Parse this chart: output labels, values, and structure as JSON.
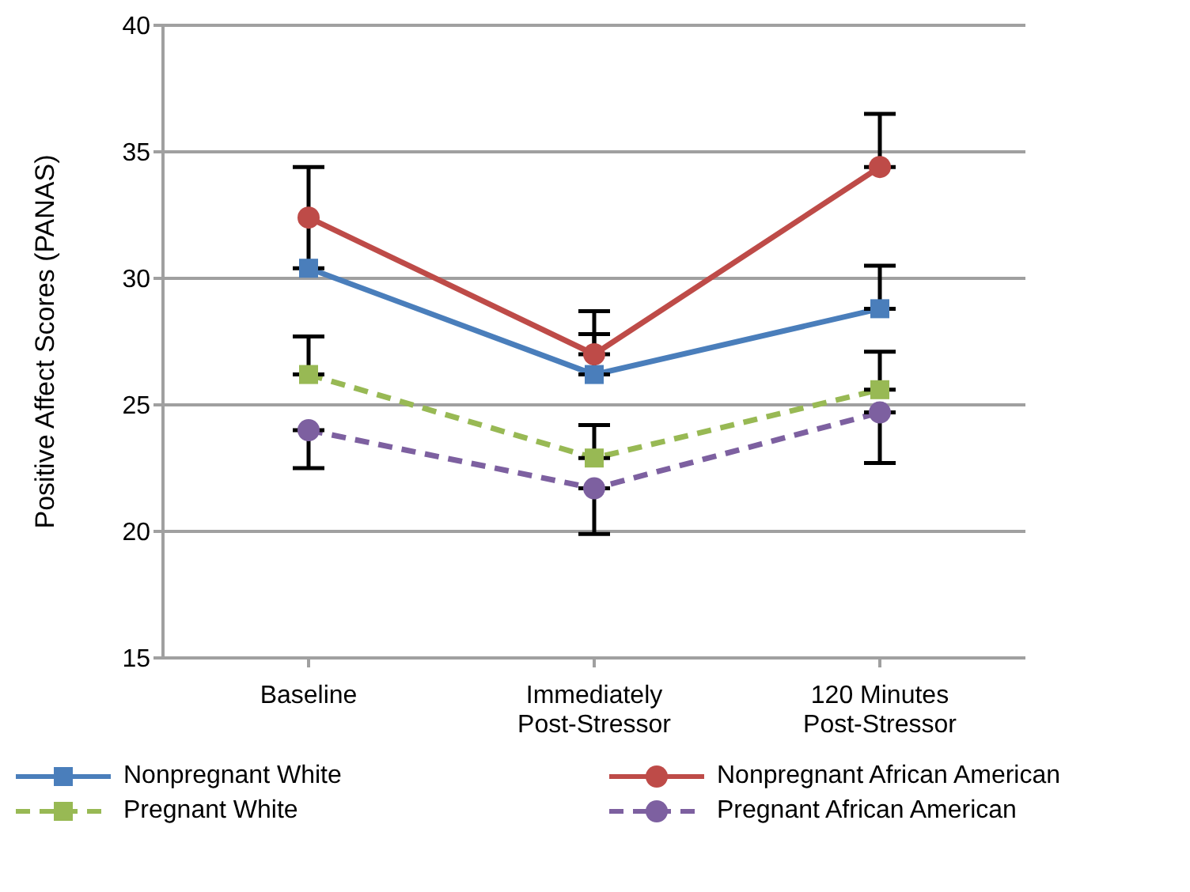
{
  "chart_data": {
    "type": "line",
    "ylabel": "Positive Affect Scores (PANAS)",
    "categories": [
      "Baseline",
      "Immediately Post-Stressor",
      "120 Minutes Post-Stressor"
    ],
    "ylim": [
      15,
      40
    ],
    "yticks": [
      15,
      20,
      25,
      30,
      35,
      40
    ],
    "grid": "y",
    "legend": "bottom",
    "series": [
      {
        "name": "Nonpregnant White",
        "color": "#4a7ebb",
        "marker": "square",
        "line_style": "solid",
        "values": [
          30.4,
          26.2,
          28.8
        ],
        "errors": [
          null,
          [
            26.2,
            27.8
          ],
          [
            28.8,
            30.5
          ]
        ]
      },
      {
        "name": "Nonpregnant African American",
        "color": "#be4b48",
        "marker": "circle",
        "line_style": "solid",
        "values": [
          32.4,
          27.0,
          34.4
        ],
        "errors": [
          2.0,
          [
            27.0,
            28.7
          ],
          [
            34.4,
            36.5
          ]
        ]
      },
      {
        "name": "Pregnant White",
        "color": "#98b954",
        "marker": "square",
        "line_style": "dashed",
        "values": [
          26.2,
          22.9,
          25.6
        ],
        "errors": [
          [
            26.2,
            27.7
          ],
          [
            22.9,
            24.2
          ],
          [
            25.6,
            27.1
          ]
        ]
      },
      {
        "name": "Pregnant African American",
        "color": "#7d60a0",
        "marker": "circle",
        "line_style": "dashed",
        "values": [
          24.0,
          21.7,
          24.7
        ],
        "errors": [
          [
            22.5,
            24.0
          ],
          [
            19.9,
            21.7
          ],
          [
            22.7,
            24.7
          ]
        ]
      }
    ]
  }
}
